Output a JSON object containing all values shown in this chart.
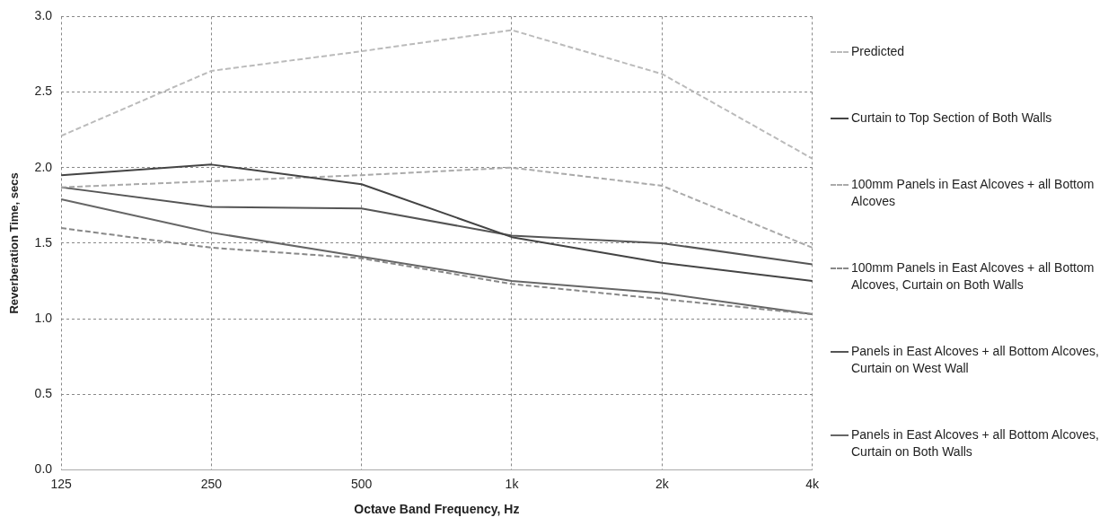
{
  "chart_data": {
    "type": "line",
    "xlabel": "Octave Band Frequency, Hz",
    "ylabel": "Reverberation Time, secs",
    "categories": [
      "125",
      "250",
      "500",
      "1k",
      "2k",
      "4k"
    ],
    "ylim": [
      0,
      3
    ],
    "yticks": [
      {
        "value": 0,
        "label": "0.0"
      },
      0.5,
      {
        "value": 1,
        "label": "1.0"
      },
      1.5,
      {
        "value": 2,
        "label": "2.0"
      },
      2.5,
      {
        "value": 3,
        "label": "3.0"
      }
    ],
    "grid": true,
    "legend": "right",
    "marker": "none",
    "series": [
      {
        "name": "Predicted",
        "color": "#bbbbbb",
        "line_style": "dashed",
        "values": [
          2.21,
          2.64,
          2.77,
          2.91,
          2.62,
          2.06
        ]
      },
      {
        "name": "Curtain to Top Section of Both Walls",
        "color": "#444444",
        "line_style": "solid",
        "values": [
          1.95,
          2.02,
          1.89,
          1.54,
          1.37,
          1.25
        ]
      },
      {
        "name": "100mm Panels in East Alcoves + all Bottom Alcoves",
        "color": "#aaaaaa",
        "line_style": "dashed",
        "values": [
          1.87,
          1.91,
          1.95,
          2.0,
          1.88,
          1.47
        ]
      },
      {
        "name": "100mm Panels in East Alcoves + all Bottom Alcoves, Curtain on Both Walls",
        "color": "#888888",
        "line_style": "dashed",
        "values": [
          1.6,
          1.47,
          1.4,
          1.23,
          1.13,
          1.03
        ]
      },
      {
        "name": "Panels in  East Alcoves + all Bottom Alcoves, Curtain on West Wall",
        "color": "#555555",
        "line_style": "solid",
        "values": [
          1.87,
          1.74,
          1.73,
          1.55,
          1.5,
          1.36
        ]
      },
      {
        "name": "Panels in East Alcoves + all Bottom Alcoves, Curtain on Both Walls",
        "color": "#666666",
        "line_style": "solid",
        "values": [
          1.79,
          1.57,
          1.41,
          1.25,
          1.17,
          1.03
        ]
      }
    ]
  }
}
